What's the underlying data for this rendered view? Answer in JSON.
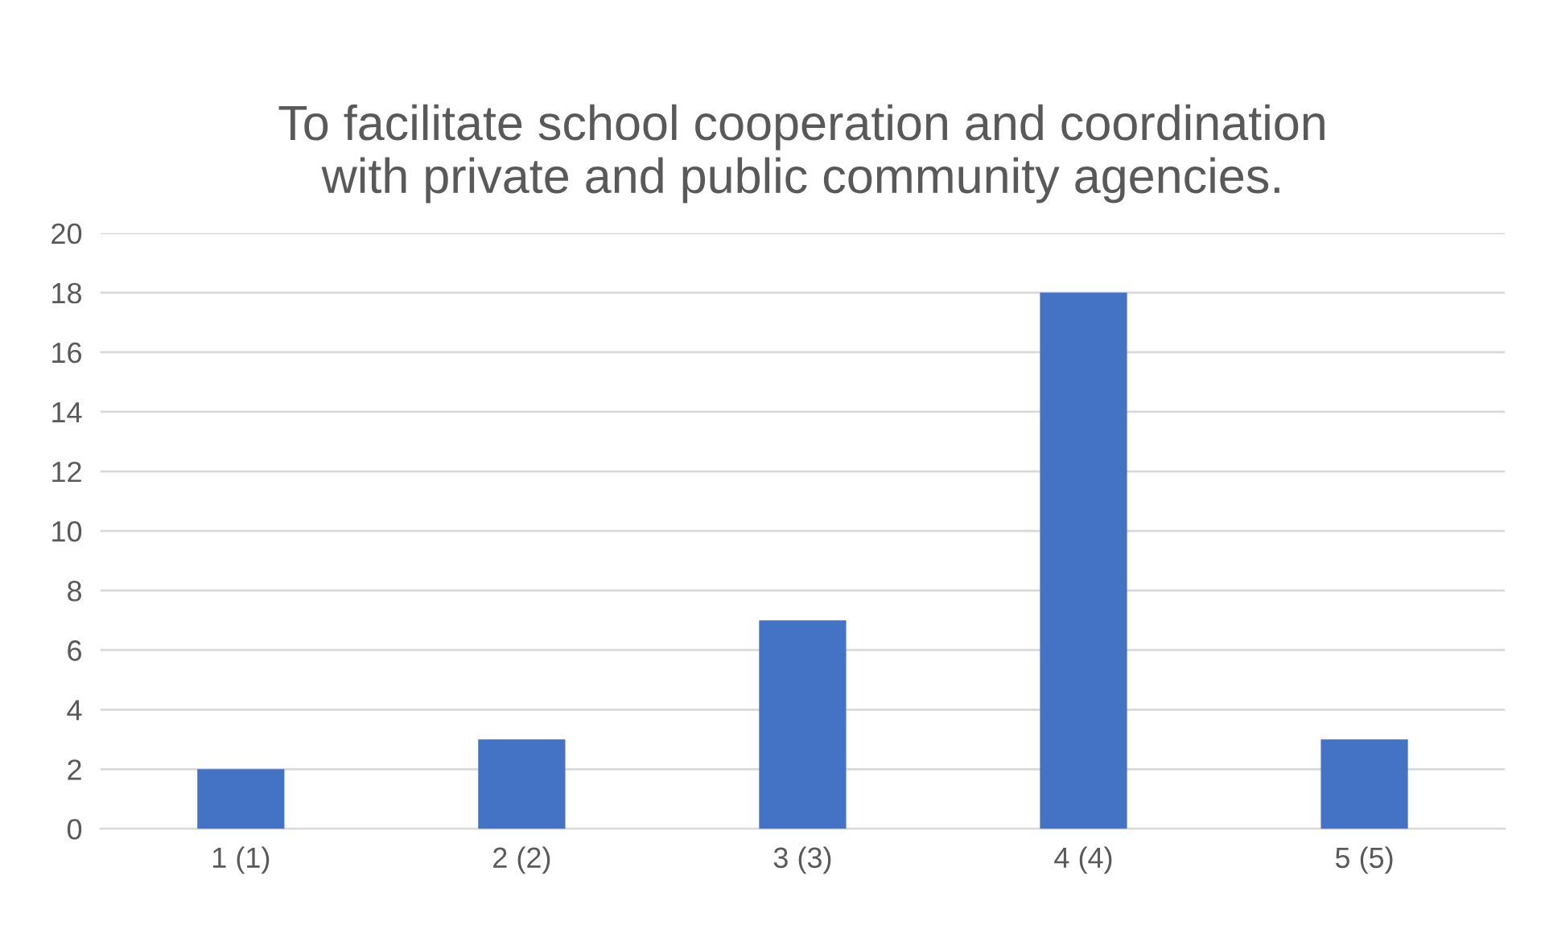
{
  "chart_data": {
    "type": "bar",
    "title": "To facilitate school cooperation and coordination\nwith private and public community agencies.",
    "categories": [
      "1 (1)",
      "2 (2)",
      "3 (3)",
      "4 (4)",
      "5 (5)"
    ],
    "values": [
      2,
      3,
      7,
      18,
      3
    ],
    "color": "#4472c4",
    "ylim": [
      0,
      20
    ],
    "yticks": [
      0,
      2,
      4,
      6,
      8,
      10,
      12,
      14,
      16,
      18,
      20
    ],
    "grid": "y"
  }
}
